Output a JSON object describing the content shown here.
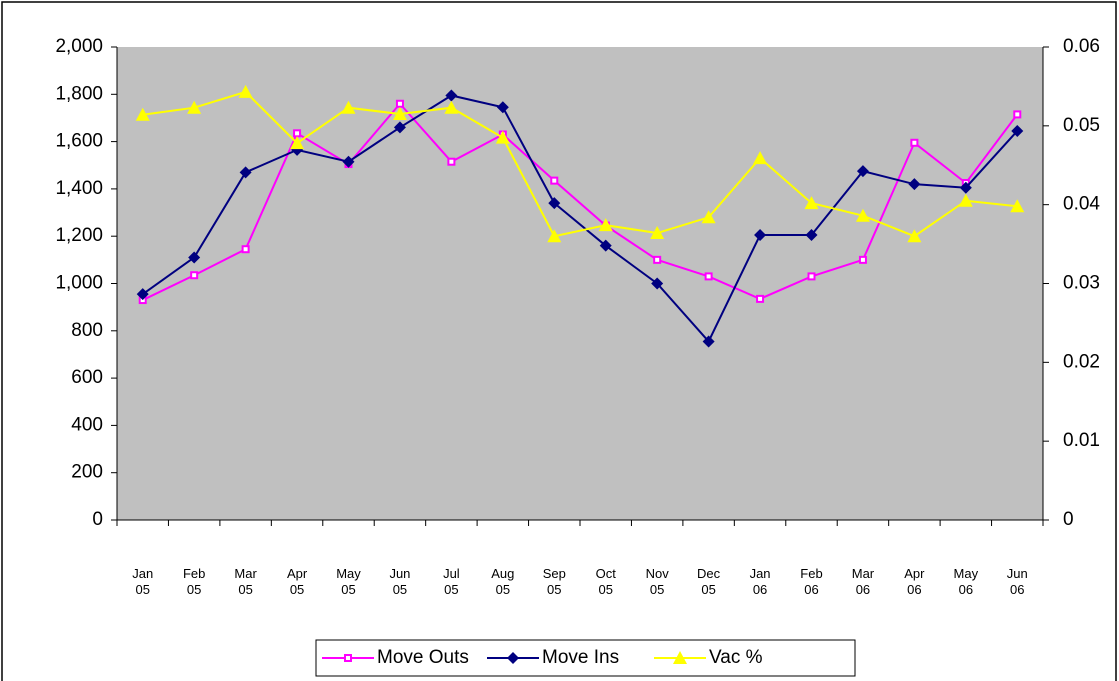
{
  "chart_data": {
    "type": "line",
    "categories": [
      "Jan 05",
      "Feb 05",
      "Mar 05",
      "Apr 05",
      "May 05",
      "Jun 05",
      "Jul 05",
      "Aug 05",
      "Sep 05",
      "Oct 05",
      "Nov 05",
      "Dec 05",
      "Jan 06",
      "Feb 06",
      "Mar 06",
      "Apr 06",
      "May 06",
      "Jun 06"
    ],
    "series": [
      {
        "name": "Move Outs",
        "color": "#ff00ff",
        "marker": "square",
        "values": [
          930,
          1035,
          1145,
          1635,
          1505,
          1760,
          1515,
          1630,
          1435,
          1245,
          1100,
          1030,
          935,
          1030,
          1100,
          1595,
          1425,
          1715
        ]
      },
      {
        "name": "Move  Ins",
        "color": "#000080",
        "marker": "diamond",
        "values": [
          955,
          1110,
          1470,
          1565,
          1515,
          1660,
          1795,
          1745,
          1340,
          1160,
          1000,
          755,
          1205,
          1205,
          1475,
          1420,
          1405,
          1645
        ]
      },
      {
        "name": "Vac %",
        "color": "#ffff00",
        "marker": "triangle",
        "axis": "y2",
        "values": [
          0.0514,
          0.0523,
          0.0543,
          0.0478,
          0.0523,
          0.0515,
          0.0523,
          0.0485,
          0.036,
          0.0374,
          0.0364,
          0.0384,
          0.0459,
          0.0402,
          0.0386,
          0.036,
          0.0405,
          0.0398
        ]
      }
    ],
    "ylim": [
      0,
      2000
    ],
    "yticks": [
      0,
      {
        "value": 200,
        "label": "200"
      },
      400,
      600,
      800,
      {
        "value": 1000,
        "label": "1,000"
      },
      {
        "value": 1200,
        "label": "1,200"
      },
      {
        "value": 1400,
        "label": "1,400"
      },
      {
        "value": 1600,
        "label": "1,600"
      },
      {
        "value": 1800,
        "label": "1,800"
      },
      {
        "value": 2000,
        "label": "2,000"
      }
    ],
    "y2lim": [
      0,
      0.06
    ],
    "y2ticks": [
      0,
      0.01,
      0.02,
      0.03,
      0.04,
      0.05,
      0.06
    ],
    "grid": false,
    "legend": "bottom",
    "plot_background": "#c0c0c0"
  }
}
